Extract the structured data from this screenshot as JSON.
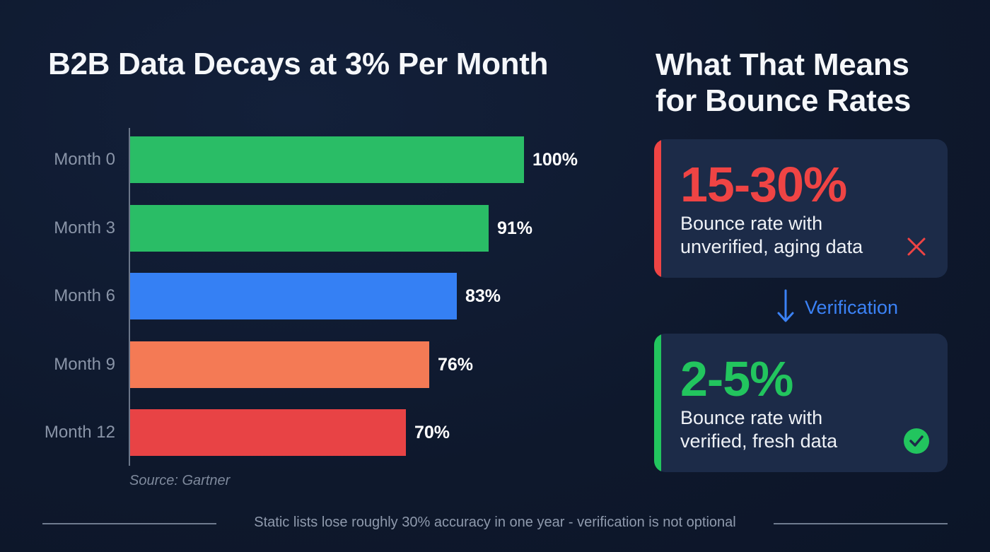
{
  "left_panel": {
    "title": "B2B Data Decays at 3% Per Month",
    "source": "Source: Gartner"
  },
  "right_panel": {
    "title_line1": "What That Means",
    "title_line2": "for Bounce Rates",
    "cards": [
      {
        "value": "15-30%",
        "desc_line1": "Bounce rate with",
        "desc_line2": "unverified, aging data",
        "icon": "x-icon",
        "color": "#ef4444"
      },
      {
        "value": "2-5%",
        "desc_line1": "Bounce rate with",
        "desc_line2": "verified, fresh data",
        "icon": "check-circle-icon",
        "color": "#22c55e"
      }
    ],
    "flow": {
      "icon": "arrow-down-icon",
      "label": "Verification",
      "color": "#3b82f6"
    }
  },
  "footer": {
    "text": "Static lists lose roughly 30% accuracy in one year - verification is not optional"
  },
  "chart_data": {
    "type": "bar",
    "orientation": "horizontal",
    "title": "B2B Data Decays at 3% Per Month",
    "categories": [
      "Month 0",
      "Month 3",
      "Month 6",
      "Month 9",
      "Month 12"
    ],
    "values": [
      100,
      91,
      83,
      76,
      70
    ],
    "labels": [
      "100%",
      "91%",
      "83%",
      "76%",
      "70%"
    ],
    "colors": [
      "#2abd66",
      "#2abd66",
      "#3580f4",
      "#f47a55",
      "#e84345"
    ],
    "xlabel": "",
    "ylabel": "",
    "xlim": [
      0,
      100
    ],
    "grid": false,
    "legend": null,
    "annotations": [
      "Source: Gartner"
    ]
  }
}
